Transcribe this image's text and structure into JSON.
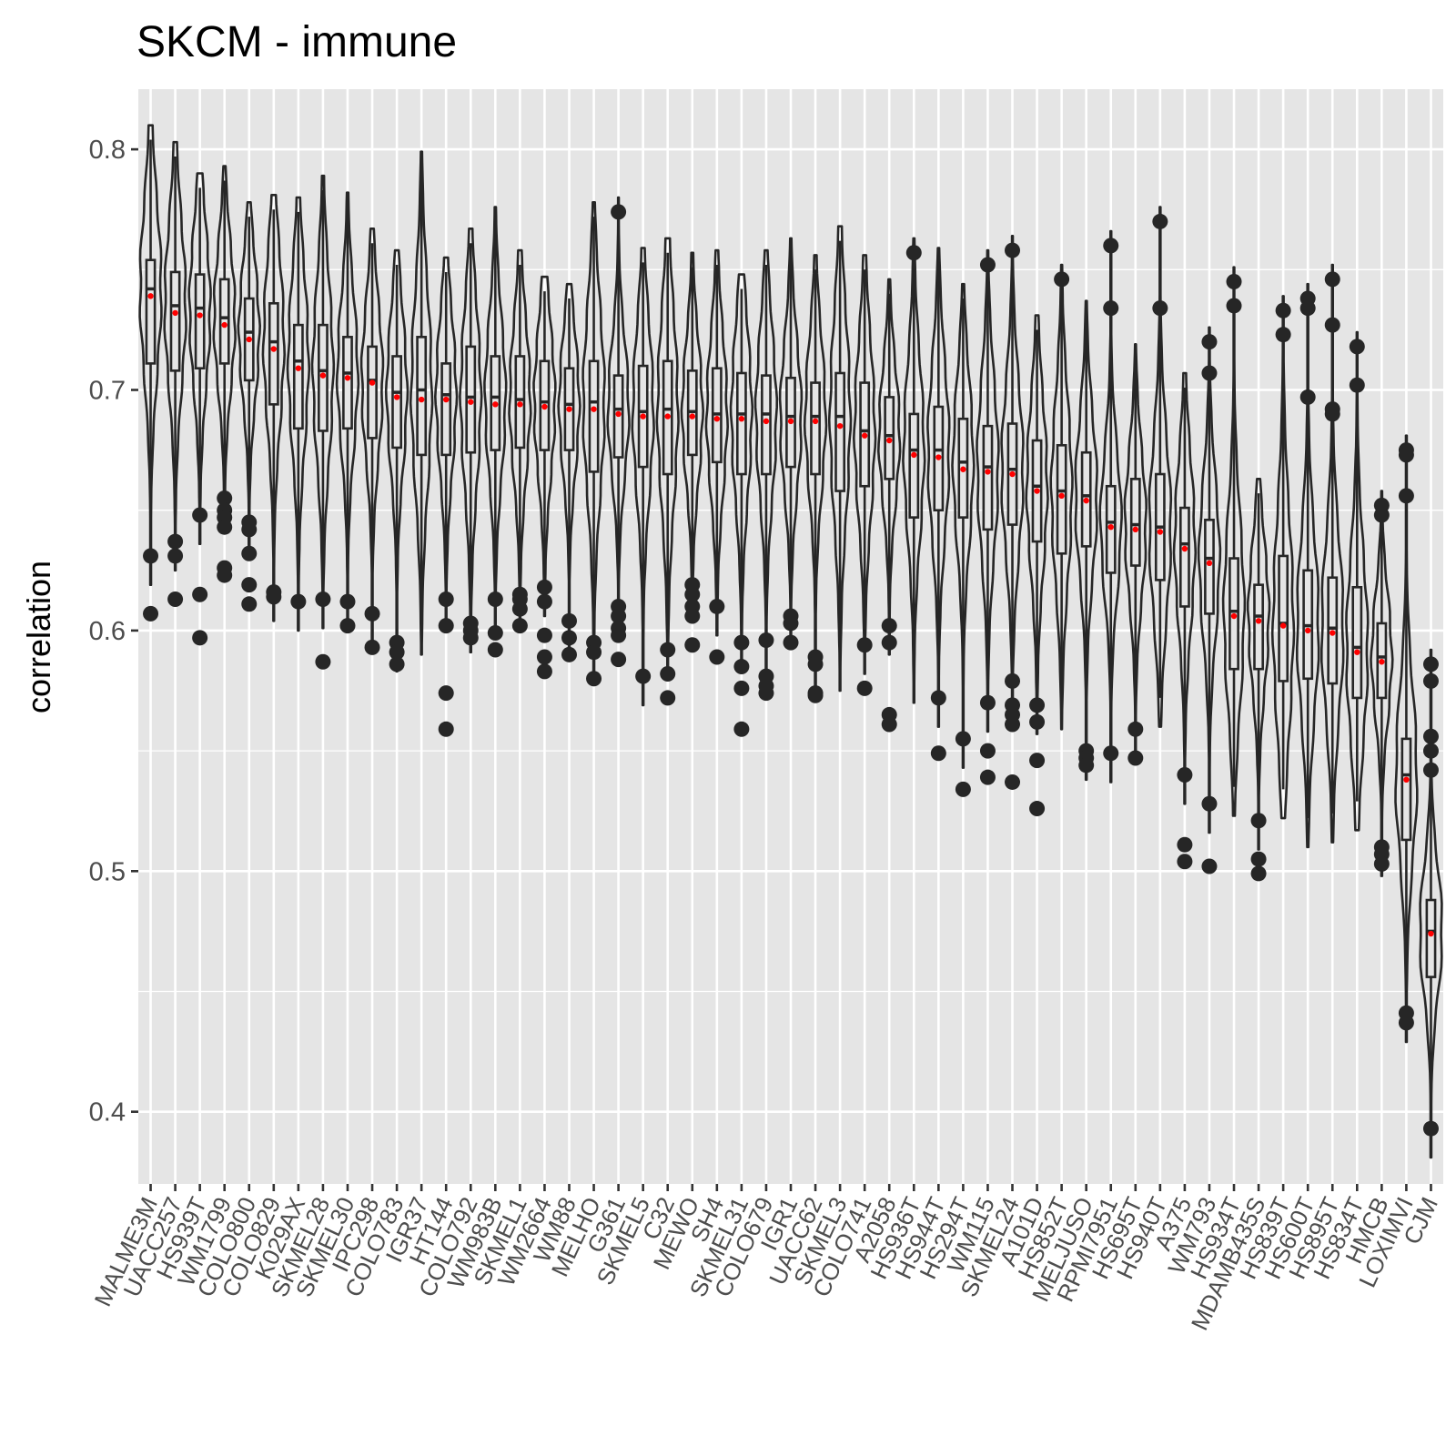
{
  "chart_data": {
    "type": "violin",
    "title": "SKCM - immune",
    "xlabel": "",
    "ylabel": "correlation",
    "ylim": [
      0.37,
      0.825
    ],
    "yticks": [
      0.4,
      0.5,
      0.6,
      0.7,
      0.8
    ],
    "ytick_labels": [
      "0.4",
      "0.5",
      "0.6",
      "0.7",
      "0.8"
    ],
    "grid": true,
    "legend": "none",
    "colors": {
      "panel": "#e5e5e5",
      "grid": "#ffffff",
      "outline": "#262626",
      "mean_point": "#ff0000",
      "tick_text": "#4d4d4d"
    },
    "categories": [
      "MALME3M",
      "UACC257",
      "HS939T",
      "WM1799",
      "COLO800",
      "COLO829",
      "K029AX",
      "SKMEL28",
      "SKMEL30",
      "IPC298",
      "COLO783",
      "IGR37",
      "HT144",
      "COLO792",
      "WM983B",
      "SKMEL1",
      "WM2664",
      "WM88",
      "MELHO",
      "G361",
      "SKMEL5",
      "C32",
      "MEWO",
      "SH4",
      "SKMEL31",
      "COLO679",
      "IGR1",
      "UACC62",
      "SKMEL3",
      "COLO741",
      "A2058",
      "HS936T",
      "HS944T",
      "HS294T",
      "WM115",
      "SKMEL24",
      "A101D",
      "HS852T",
      "MELJUSO",
      "RPMI7951",
      "HS695T",
      "HS940T",
      "A375",
      "WM793",
      "HS934T",
      "MDAMB435S",
      "HS839T",
      "HS600T",
      "HS895T",
      "HS834T",
      "HMCB",
      "LOXIMVI",
      "CJM"
    ],
    "series": [
      {
        "mean": 0.739,
        "q1": 0.711,
        "median": 0.742,
        "q3": 0.754,
        "min": 0.631,
        "max": 0.804,
        "outliers": [
          0.631,
          0.607
        ]
      },
      {
        "mean": 0.732,
        "q1": 0.708,
        "median": 0.735,
        "q3": 0.749,
        "min": 0.637,
        "max": 0.797,
        "outliers": [
          0.637,
          0.631,
          0.613
        ]
      },
      {
        "mean": 0.731,
        "q1": 0.709,
        "median": 0.734,
        "q3": 0.748,
        "min": 0.648,
        "max": 0.784,
        "outliers": [
          0.648,
          0.615,
          0.597
        ]
      },
      {
        "mean": 0.727,
        "q1": 0.711,
        "median": 0.73,
        "q3": 0.746,
        "min": 0.655,
        "max": 0.787,
        "outliers": [
          0.655,
          0.65,
          0.647,
          0.643,
          0.626,
          0.623
        ]
      },
      {
        "mean": 0.721,
        "q1": 0.704,
        "median": 0.724,
        "q3": 0.738,
        "min": 0.645,
        "max": 0.772,
        "outliers": [
          0.645,
          0.642,
          0.632,
          0.619,
          0.611
        ]
      },
      {
        "mean": 0.717,
        "q1": 0.694,
        "median": 0.72,
        "q3": 0.736,
        "min": 0.616,
        "max": 0.775,
        "outliers": [
          0.616,
          0.614
        ]
      },
      {
        "mean": 0.709,
        "q1": 0.684,
        "median": 0.712,
        "q3": 0.727,
        "min": 0.612,
        "max": 0.774,
        "outliers": [
          0.612
        ]
      },
      {
        "mean": 0.706,
        "q1": 0.683,
        "median": 0.708,
        "q3": 0.727,
        "min": 0.613,
        "max": 0.783,
        "outliers": [
          0.613,
          0.587
        ]
      },
      {
        "mean": 0.705,
        "q1": 0.684,
        "median": 0.707,
        "q3": 0.722,
        "min": 0.612,
        "max": 0.776,
        "outliers": [
          0.612,
          0.602
        ]
      },
      {
        "mean": 0.703,
        "q1": 0.68,
        "median": 0.704,
        "q3": 0.718,
        "min": 0.607,
        "max": 0.761,
        "outliers": [
          0.607,
          0.593
        ]
      },
      {
        "mean": 0.697,
        "q1": 0.676,
        "median": 0.699,
        "q3": 0.714,
        "min": 0.595,
        "max": 0.752,
        "outliers": [
          0.595,
          0.591,
          0.586
        ]
      },
      {
        "mean": 0.696,
        "q1": 0.673,
        "median": 0.7,
        "q3": 0.722,
        "min": 0.602,
        "max": 0.793,
        "outliers": []
      },
      {
        "mean": 0.696,
        "q1": 0.673,
        "median": 0.698,
        "q3": 0.711,
        "min": 0.613,
        "max": 0.749,
        "outliers": [
          0.613,
          0.602,
          0.574,
          0.559
        ]
      },
      {
        "mean": 0.695,
        "q1": 0.674,
        "median": 0.697,
        "q3": 0.718,
        "min": 0.603,
        "max": 0.761,
        "outliers": [
          0.603,
          0.6,
          0.597
        ]
      },
      {
        "mean": 0.694,
        "q1": 0.675,
        "median": 0.697,
        "q3": 0.714,
        "min": 0.613,
        "max": 0.77,
        "outliers": [
          0.613,
          0.599,
          0.592
        ]
      },
      {
        "mean": 0.694,
        "q1": 0.676,
        "median": 0.696,
        "q3": 0.714,
        "min": 0.615,
        "max": 0.752,
        "outliers": [
          0.615,
          0.613,
          0.609,
          0.602
        ]
      },
      {
        "mean": 0.693,
        "q1": 0.675,
        "median": 0.695,
        "q3": 0.712,
        "min": 0.618,
        "max": 0.741,
        "outliers": [
          0.618,
          0.612,
          0.598,
          0.589,
          0.583
        ]
      },
      {
        "mean": 0.692,
        "q1": 0.675,
        "median": 0.694,
        "q3": 0.709,
        "min": 0.604,
        "max": 0.738,
        "outliers": [
          0.604,
          0.597,
          0.59
        ]
      },
      {
        "mean": 0.692,
        "q1": 0.666,
        "median": 0.695,
        "q3": 0.712,
        "min": 0.595,
        "max": 0.772,
        "outliers": [
          0.595,
          0.591,
          0.58
        ]
      },
      {
        "mean": 0.69,
        "q1": 0.672,
        "median": 0.692,
        "q3": 0.706,
        "min": 0.61,
        "max": 0.774,
        "outliers": [
          0.774,
          0.61,
          0.606,
          0.601,
          0.598,
          0.588
        ]
      },
      {
        "mean": 0.689,
        "q1": 0.668,
        "median": 0.691,
        "q3": 0.71,
        "min": 0.581,
        "max": 0.753,
        "outliers": [
          0.581
        ]
      },
      {
        "mean": 0.689,
        "q1": 0.665,
        "median": 0.692,
        "q3": 0.712,
        "min": 0.592,
        "max": 0.757,
        "outliers": [
          0.592,
          0.582,
          0.572
        ]
      },
      {
        "mean": 0.689,
        "q1": 0.673,
        "median": 0.691,
        "q3": 0.708,
        "min": 0.619,
        "max": 0.751,
        "outliers": [
          0.619,
          0.615,
          0.61,
          0.606,
          0.594
        ]
      },
      {
        "mean": 0.688,
        "q1": 0.67,
        "median": 0.69,
        "q3": 0.709,
        "min": 0.61,
        "max": 0.752,
        "outliers": [
          0.61,
          0.589
        ]
      },
      {
        "mean": 0.688,
        "q1": 0.665,
        "median": 0.69,
        "q3": 0.707,
        "min": 0.595,
        "max": 0.742,
        "outliers": [
          0.595,
          0.585,
          0.576,
          0.559
        ]
      },
      {
        "mean": 0.687,
        "q1": 0.665,
        "median": 0.69,
        "q3": 0.706,
        "min": 0.596,
        "max": 0.752,
        "outliers": [
          0.596,
          0.581,
          0.577,
          0.574
        ]
      },
      {
        "mean": 0.687,
        "q1": 0.668,
        "median": 0.689,
        "q3": 0.705,
        "min": 0.606,
        "max": 0.757,
        "outliers": [
          0.606,
          0.603,
          0.595
        ]
      },
      {
        "mean": 0.687,
        "q1": 0.665,
        "median": 0.689,
        "q3": 0.703,
        "min": 0.589,
        "max": 0.75,
        "outliers": [
          0.589,
          0.586,
          0.574,
          0.573
        ]
      },
      {
        "mean": 0.685,
        "q1": 0.658,
        "median": 0.689,
        "q3": 0.707,
        "min": 0.587,
        "max": 0.762,
        "outliers": []
      },
      {
        "mean": 0.681,
        "q1": 0.66,
        "median": 0.683,
        "q3": 0.703,
        "min": 0.594,
        "max": 0.75,
        "outliers": [
          0.594,
          0.576
        ]
      },
      {
        "mean": 0.679,
        "q1": 0.663,
        "median": 0.681,
        "q3": 0.697,
        "min": 0.602,
        "max": 0.74,
        "outliers": [
          0.602,
          0.595,
          0.565,
          0.561
        ]
      },
      {
        "mean": 0.673,
        "q1": 0.647,
        "median": 0.675,
        "q3": 0.69,
        "min": 0.582,
        "max": 0.757,
        "outliers": [
          0.757
        ]
      },
      {
        "mean": 0.672,
        "q1": 0.65,
        "median": 0.675,
        "q3": 0.693,
        "min": 0.572,
        "max": 0.753,
        "outliers": [
          0.572,
          0.549
        ]
      },
      {
        "mean": 0.667,
        "q1": 0.647,
        "median": 0.67,
        "q3": 0.688,
        "min": 0.555,
        "max": 0.738,
        "outliers": [
          0.555,
          0.534
        ]
      },
      {
        "mean": 0.666,
        "q1": 0.642,
        "median": 0.668,
        "q3": 0.685,
        "min": 0.57,
        "max": 0.752,
        "outliers": [
          0.752,
          0.57,
          0.55,
          0.539
        ]
      },
      {
        "mean": 0.665,
        "q1": 0.644,
        "median": 0.667,
        "q3": 0.686,
        "min": 0.579,
        "max": 0.758,
        "outliers": [
          0.758,
          0.579,
          0.569,
          0.565,
          0.561,
          0.537
        ]
      },
      {
        "mean": 0.658,
        "q1": 0.637,
        "median": 0.66,
        "q3": 0.679,
        "min": 0.569,
        "max": 0.725,
        "outliers": [
          0.569,
          0.562,
          0.546,
          0.526
        ]
      },
      {
        "mean": 0.656,
        "q1": 0.632,
        "median": 0.658,
        "q3": 0.677,
        "min": 0.571,
        "max": 0.746,
        "outliers": [
          0.746
        ]
      },
      {
        "mean": 0.654,
        "q1": 0.635,
        "median": 0.656,
        "q3": 0.674,
        "min": 0.55,
        "max": 0.731,
        "outliers": [
          0.55,
          0.547,
          0.544
        ]
      },
      {
        "mean": 0.643,
        "q1": 0.624,
        "median": 0.645,
        "q3": 0.66,
        "min": 0.549,
        "max": 0.76,
        "outliers": [
          0.76,
          0.734,
          0.549
        ]
      },
      {
        "mean": 0.642,
        "q1": 0.627,
        "median": 0.644,
        "q3": 0.663,
        "min": 0.559,
        "max": 0.713,
        "outliers": [
          0.559,
          0.547
        ]
      },
      {
        "mean": 0.641,
        "q1": 0.621,
        "median": 0.643,
        "q3": 0.665,
        "min": 0.572,
        "max": 0.77,
        "outliers": [
          0.77,
          0.734
        ]
      },
      {
        "mean": 0.634,
        "q1": 0.61,
        "median": 0.636,
        "q3": 0.651,
        "min": 0.54,
        "max": 0.701,
        "outliers": [
          0.54,
          0.511,
          0.504
        ]
      },
      {
        "mean": 0.628,
        "q1": 0.607,
        "median": 0.63,
        "q3": 0.646,
        "min": 0.528,
        "max": 0.72,
        "outliers": [
          0.72,
          0.707,
          0.528,
          0.502
        ]
      },
      {
        "mean": 0.606,
        "q1": 0.584,
        "median": 0.608,
        "q3": 0.63,
        "min": 0.535,
        "max": 0.745,
        "outliers": [
          0.745,
          0.735
        ]
      },
      {
        "mean": 0.604,
        "q1": 0.584,
        "median": 0.606,
        "q3": 0.619,
        "min": 0.521,
        "max": 0.657,
        "outliers": [
          0.521,
          0.505,
          0.499
        ]
      },
      {
        "mean": 0.602,
        "q1": 0.579,
        "median": 0.603,
        "q3": 0.631,
        "min": 0.534,
        "max": 0.733,
        "outliers": [
          0.733,
          0.723
        ]
      },
      {
        "mean": 0.6,
        "q1": 0.58,
        "median": 0.602,
        "q3": 0.625,
        "min": 0.522,
        "max": 0.738,
        "outliers": [
          0.738,
          0.734,
          0.697
        ]
      },
      {
        "mean": 0.599,
        "q1": 0.578,
        "median": 0.601,
        "q3": 0.622,
        "min": 0.524,
        "max": 0.746,
        "outliers": [
          0.746,
          0.727,
          0.692,
          0.69
        ]
      },
      {
        "mean": 0.591,
        "q1": 0.572,
        "median": 0.593,
        "q3": 0.618,
        "min": 0.529,
        "max": 0.718,
        "outliers": [
          0.718,
          0.702
        ]
      },
      {
        "mean": 0.587,
        "q1": 0.572,
        "median": 0.589,
        "q3": 0.603,
        "min": 0.51,
        "max": 0.652,
        "outliers": [
          0.652,
          0.648,
          0.51,
          0.507,
          0.503
        ]
      },
      {
        "mean": 0.538,
        "q1": 0.513,
        "median": 0.54,
        "q3": 0.555,
        "min": 0.441,
        "max": 0.675,
        "outliers": [
          0.675,
          0.673,
          0.656,
          0.441,
          0.437
        ]
      },
      {
        "mean": 0.474,
        "q1": 0.456,
        "median": 0.475,
        "q3": 0.488,
        "min": 0.393,
        "max": 0.586,
        "outliers": [
          0.586,
          0.579,
          0.556,
          0.55,
          0.542,
          0.393
        ]
      }
    ]
  }
}
